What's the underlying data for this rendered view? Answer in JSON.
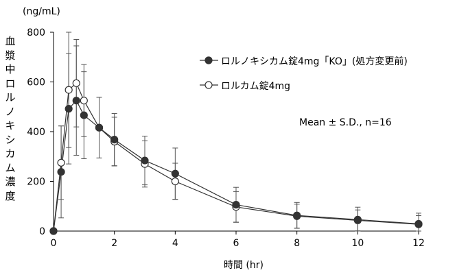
{
  "chart_data": {
    "type": "line",
    "unit_label": "(ng/mL)",
    "ylabel": "血漿中ロルノキシカム濃度",
    "xlabel": "時間 (hr)",
    "xlim": [
      0,
      12
    ],
    "ylim": [
      0,
      800
    ],
    "xticks": [
      0,
      2,
      4,
      6,
      8,
      10,
      12
    ],
    "yticks": [
      0,
      200,
      400,
      600,
      800
    ],
    "annotation": "Mean ± S.D., n=16",
    "legend_position": "top-center",
    "series": [
      {
        "name": "ロルノキシカム錠4mg「KO」(処方変更前)",
        "marker": "filled-circle",
        "color": "#333333",
        "x": [
          0,
          0.25,
          0.5,
          0.75,
          1,
          1.5,
          2,
          3,
          4,
          6,
          8,
          10,
          12
        ],
        "mean": [
          0,
          238,
          492,
          525,
          466,
          416,
          368,
          284,
          231,
          106,
          63,
          46,
          29
        ],
        "sd": [
          0,
          185,
          222,
          220,
          175,
          122,
          105,
          98,
          103,
          70,
          52,
          50,
          43
        ]
      },
      {
        "name": "ロルカム錠4mg",
        "marker": "open-circle",
        "color": "#ffffff",
        "x": [
          0,
          0.25,
          0.5,
          0.75,
          1,
          1.5,
          2,
          3,
          4,
          6,
          8,
          10,
          12
        ],
        "mean": [
          0,
          275,
          568,
          595,
          525,
          416,
          360,
          270,
          200,
          97,
          60,
          43,
          27
        ],
        "sd": [
          0,
          148,
          232,
          176,
          145,
          122,
          98,
          93,
          73,
          62,
          48,
          42,
          35
        ]
      }
    ]
  }
}
